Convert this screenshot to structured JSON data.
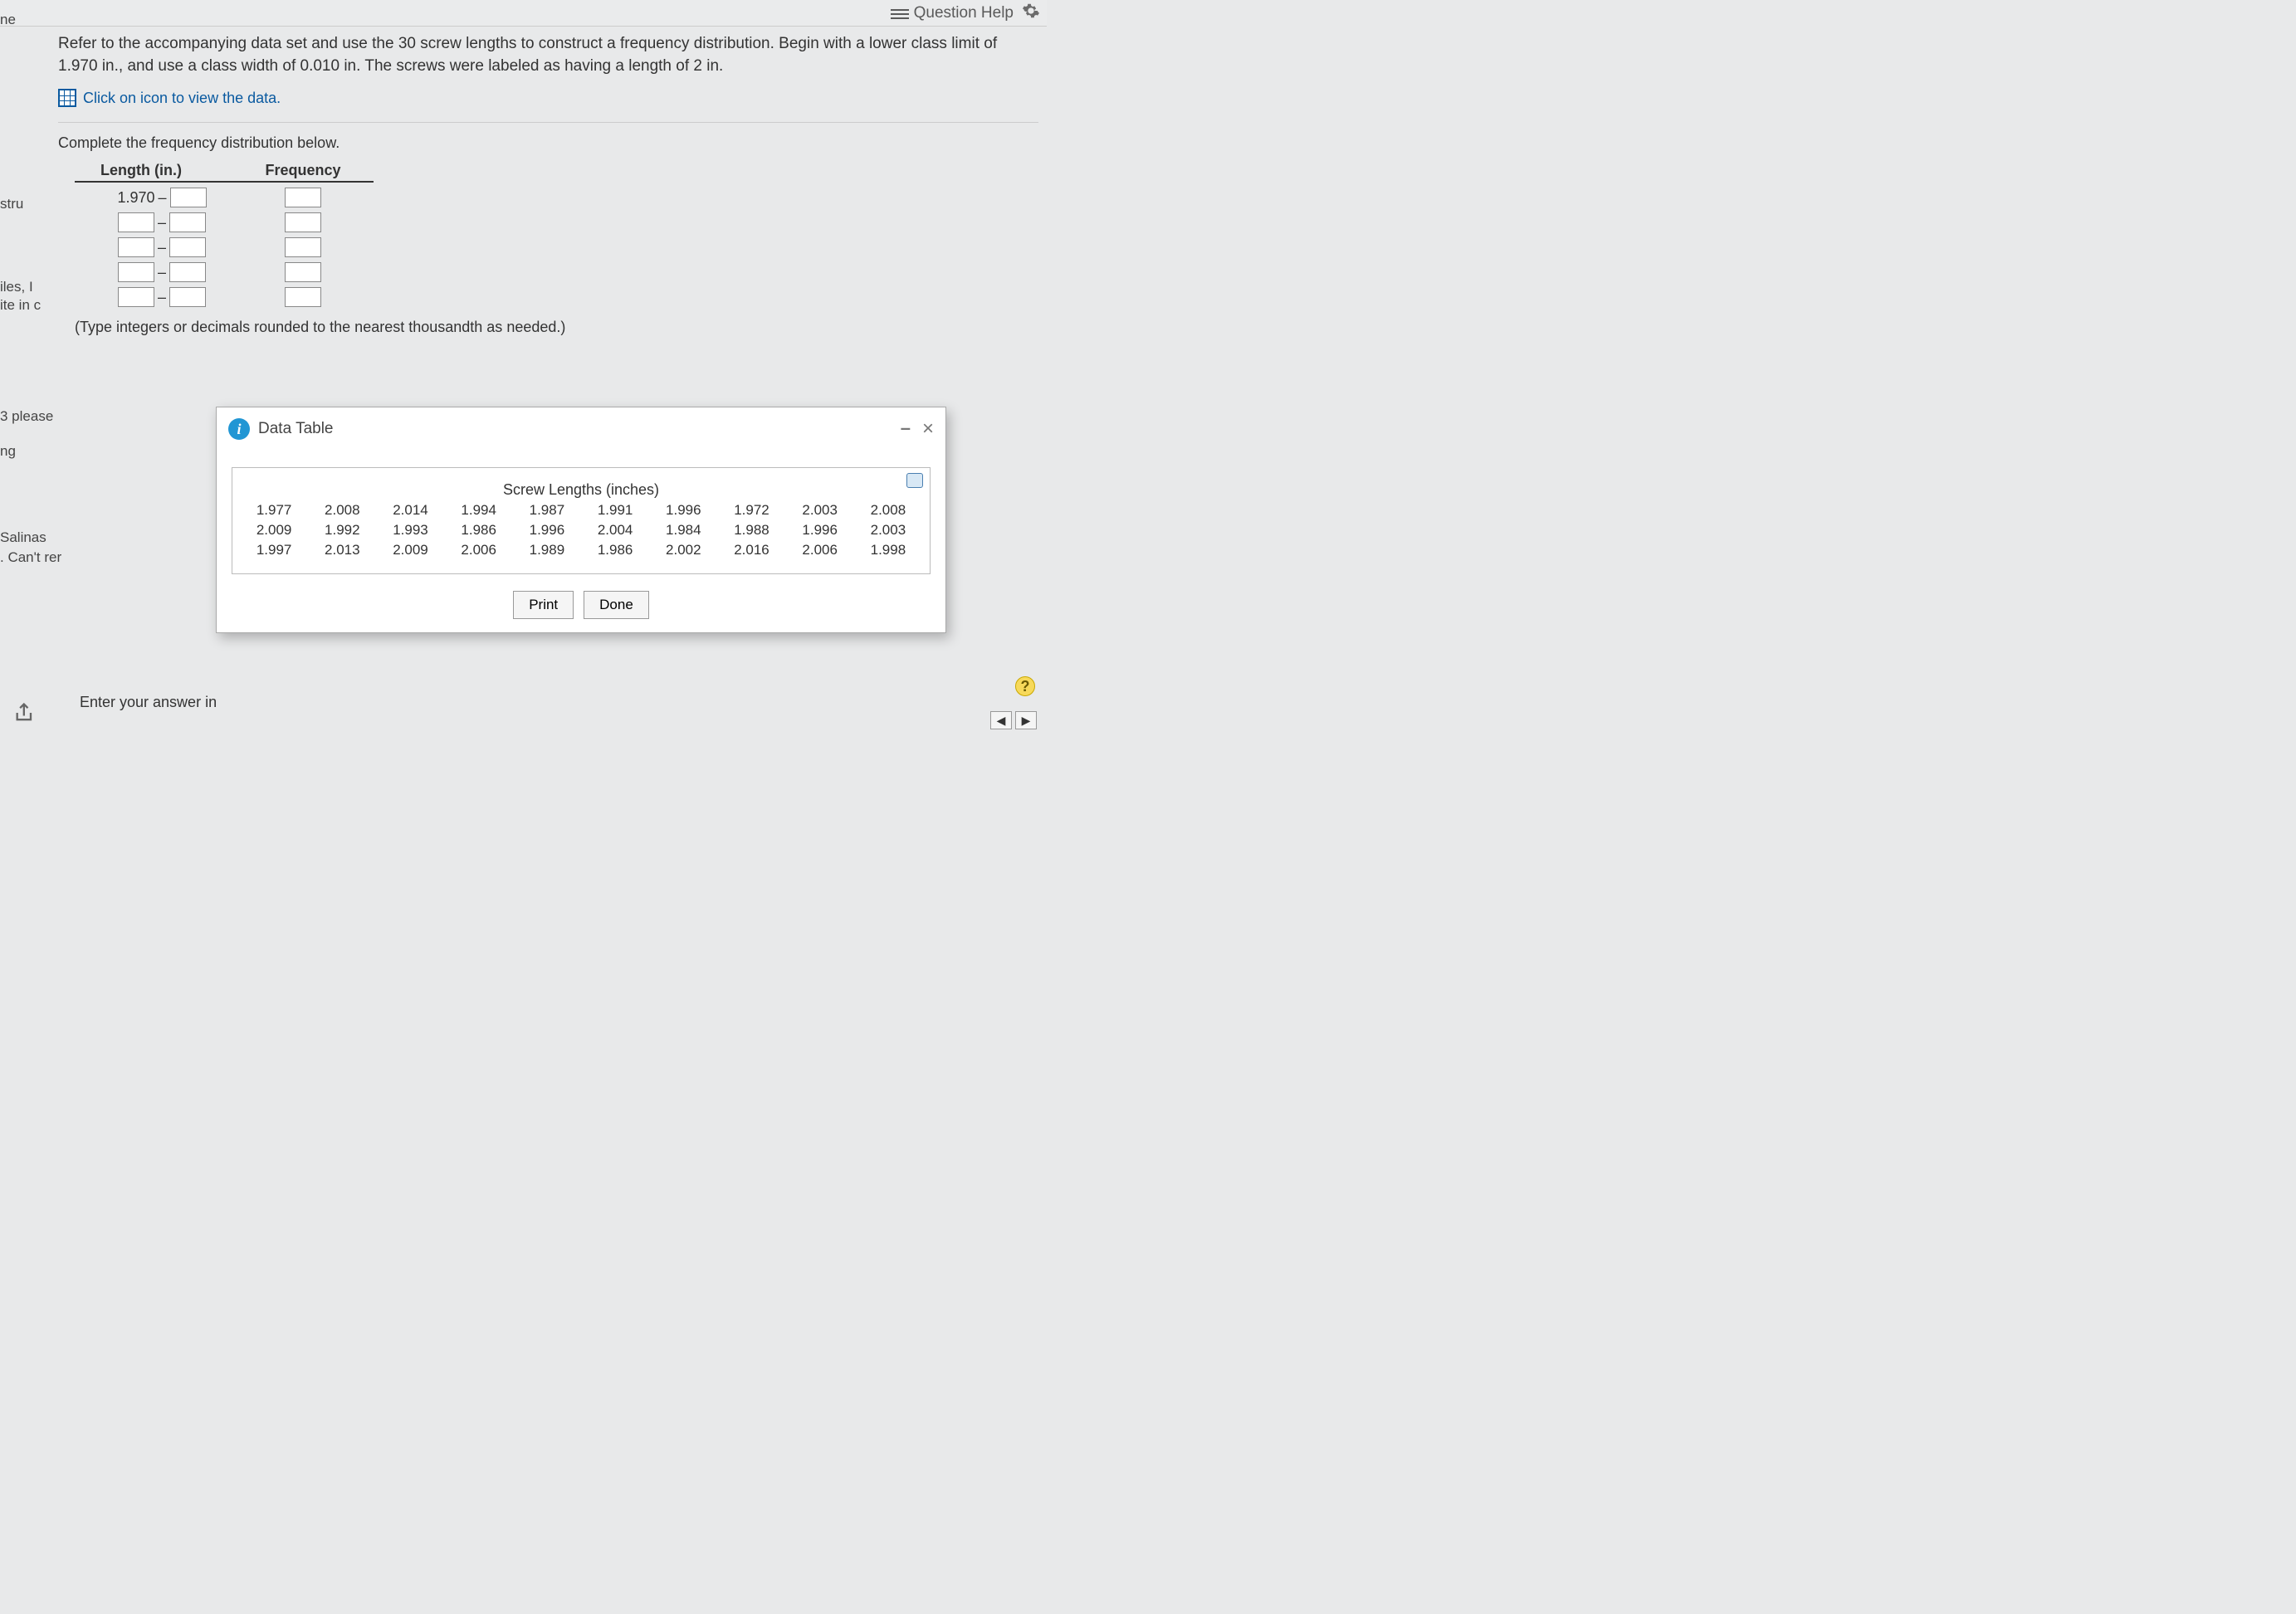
{
  "topbar": {
    "help_label": "Question Help"
  },
  "left_edge": {
    "t1": "ne",
    "t2": "stru",
    "t3": "iles, I",
    "t4": "ite in c",
    "t5": "3 please",
    "t6": "ng",
    "t7": "Salinas",
    "t8": ". Can't rer"
  },
  "question": {
    "prompt": "Refer to the accompanying data set and use the 30 screw lengths to construct a frequency distribution. Begin with a lower class limit of 1.970 in., and use a class width of 0.010 in. The screws were labeled as having a length of 2 in.",
    "data_link": "Click on icon to view the data.",
    "instruction": "Complete the frequency distribution below.",
    "col_length": "Length (in.)",
    "col_freq": "Frequency",
    "first_lower": "1.970",
    "dash": "–",
    "note": "(Type integers or decimals rounded to the nearest thousandth as needed.)"
  },
  "dialog": {
    "title": "Data Table",
    "table_title": "Screw Lengths (inches)",
    "rows": [
      [
        "1.977",
        "2.008",
        "2.014",
        "1.994",
        "1.987",
        "1.991",
        "1.996",
        "1.972",
        "2.003",
        "2.008"
      ],
      [
        "2.009",
        "1.992",
        "1.993",
        "1.986",
        "1.996",
        "2.004",
        "1.984",
        "1.988",
        "1.996",
        "2.003"
      ],
      [
        "1.997",
        "2.013",
        "2.009",
        "2.006",
        "1.989",
        "1.986",
        "2.002",
        "2.016",
        "2.006",
        "1.998"
      ]
    ],
    "print": "Print",
    "done": "Done"
  },
  "footer": {
    "answer_prompt": "Enter your answer in",
    "help_q": "?",
    "prev": "◀",
    "next": "▶"
  },
  "colors": {
    "link": "#0a5aa0",
    "info": "#2196d4",
    "bg": "#e8e9ea"
  }
}
